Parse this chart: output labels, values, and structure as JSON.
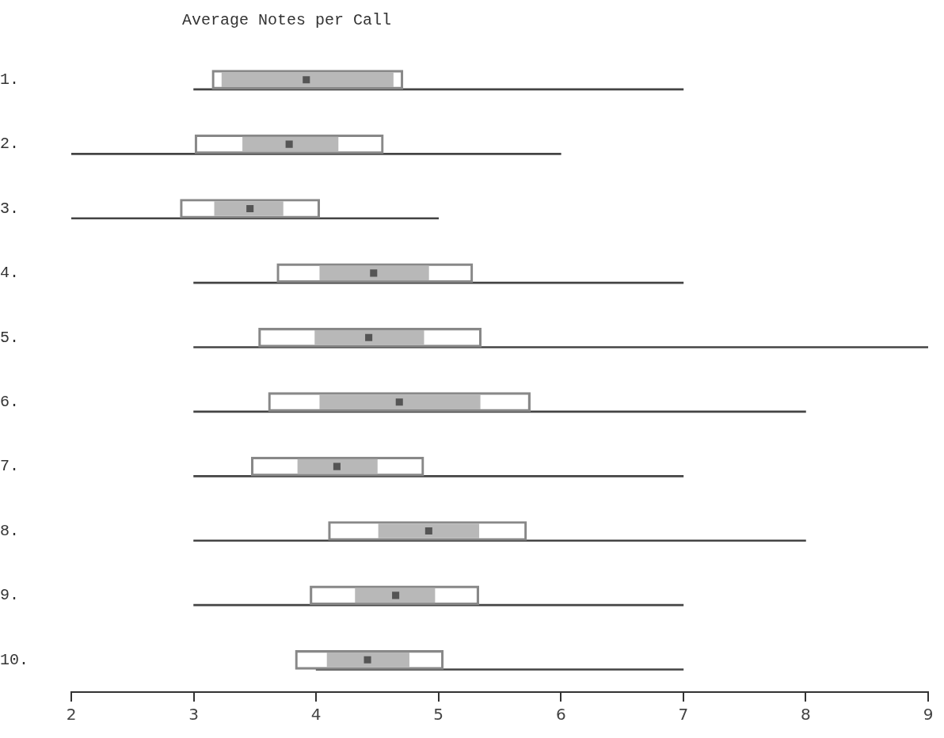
{
  "chart_data": {
    "type": "bar",
    "orientation": "horizontal",
    "title": "Average Notes per Call",
    "categories": [
      "1.",
      "2.",
      "3.",
      "4.",
      "5.",
      "6.",
      "7.",
      "8.",
      "9.",
      "10."
    ],
    "series": [
      {
        "type": "bar",
        "color": "#444444",
        "base": [
          3.0,
          2.0,
          2.0,
          3.0,
          3.0,
          3.0,
          3.0,
          3.0,
          3.0,
          4.0
        ],
        "values": [
          4.0,
          4.0,
          3.0,
          4.0,
          6.0,
          5.0,
          4.0,
          5.0,
          4.0,
          3.0
        ]
      },
      {
        "type": "bar",
        "color": "#888888",
        "base": [
          3.15,
          3.01,
          2.89,
          3.68,
          3.53,
          3.61,
          3.47,
          4.1,
          3.95,
          3.83
        ],
        "values": [
          1.56,
          1.54,
          1.14,
          1.6,
          1.82,
          2.14,
          1.41,
          1.62,
          1.38,
          1.21
        ]
      },
      {
        "type": "bar",
        "color": "#b8b8b8",
        "base": [
          3.23,
          3.4,
          3.17,
          4.03,
          3.99,
          4.03,
          3.85,
          4.51,
          4.32,
          4.09
        ],
        "values": [
          1.4,
          0.78,
          0.56,
          0.89,
          0.89,
          1.31,
          0.65,
          0.82,
          0.65,
          0.67
        ]
      },
      {
        "type": "scatter",
        "color": "#555555",
        "x": [
          "1.",
          "2.",
          "3.",
          "4.",
          "5.",
          "6.",
          "7.",
          "8.",
          "9.",
          "10."
        ],
        "values": [
          3.92,
          3.78,
          3.46,
          4.47,
          4.43,
          4.68,
          4.17,
          4.92,
          4.65,
          4.42
        ]
      }
    ],
    "xlim": [
      2,
      9
    ],
    "xticks": [
      2,
      3,
      4,
      5,
      6,
      7,
      8,
      9
    ],
    "grid": false,
    "legend": false,
    "marker": "square"
  }
}
